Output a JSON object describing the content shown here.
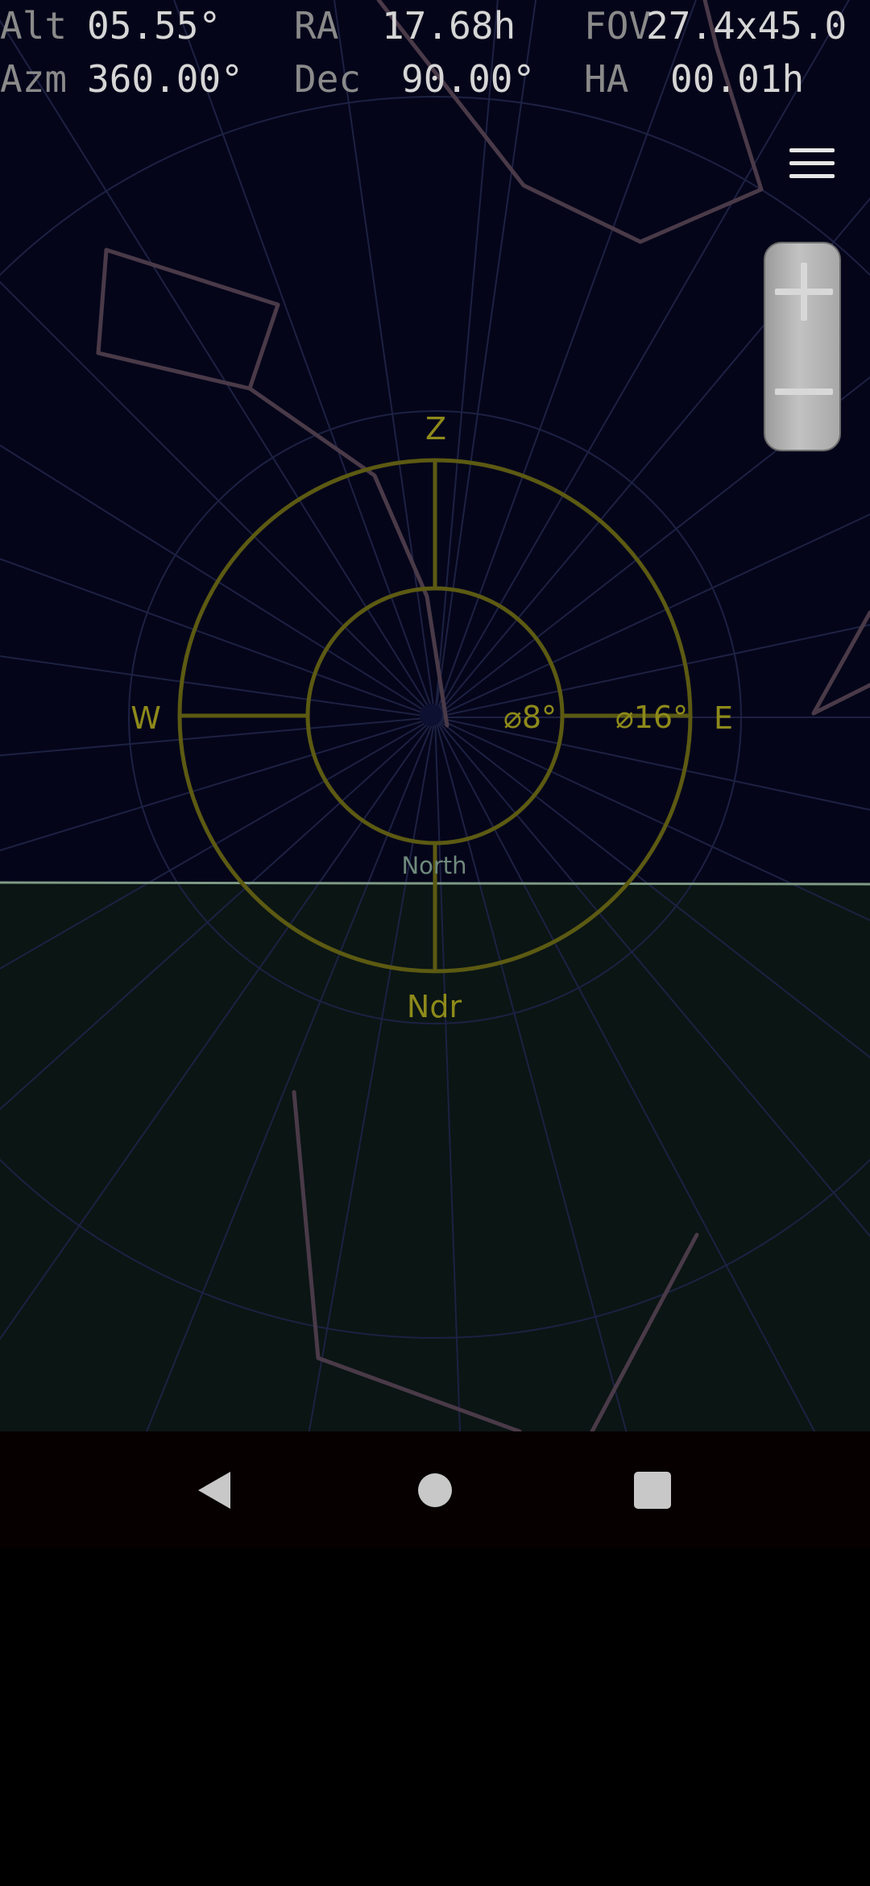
{
  "status_panel": {
    "alt_label": "Alt",
    "alt_value": "05.55°",
    "ra_label": "RA",
    "ra_value": "17.68h",
    "fov_label": "FOV",
    "fov_value": "27.4x45.0",
    "azm_label": "Azm",
    "azm_value": "360.00°",
    "dec_label": "Dec",
    "dec_value": "90.00°",
    "ha_label": "HA",
    "ha_value": "00.01h"
  },
  "reticle": {
    "zenith": "Z",
    "nadir": "Ndr",
    "west": "W",
    "east": "E",
    "inner_ring": "⌀8°",
    "outer_ring": "⌀16°",
    "horizon_direction": "North"
  },
  "toolbar": {
    "menu_icon": "hamburger-menu-icon",
    "zoom_in_icon": "plus-icon",
    "zoom_out_icon": "minus-icon"
  },
  "nav_bar": {
    "back_icon": "back-triangle-icon",
    "home_icon": "home-circle-icon",
    "recents_icon": "recents-square-icon"
  },
  "colors": {
    "sky": "#05051a",
    "ground": "#0b1514",
    "horizon": "#7e9a86",
    "reticle": "#5c5a12",
    "reticle_text": "#8e8a1a",
    "grid": "#1d2142",
    "constellation": "#4a3a48",
    "north_label": "#6f8a7c"
  }
}
